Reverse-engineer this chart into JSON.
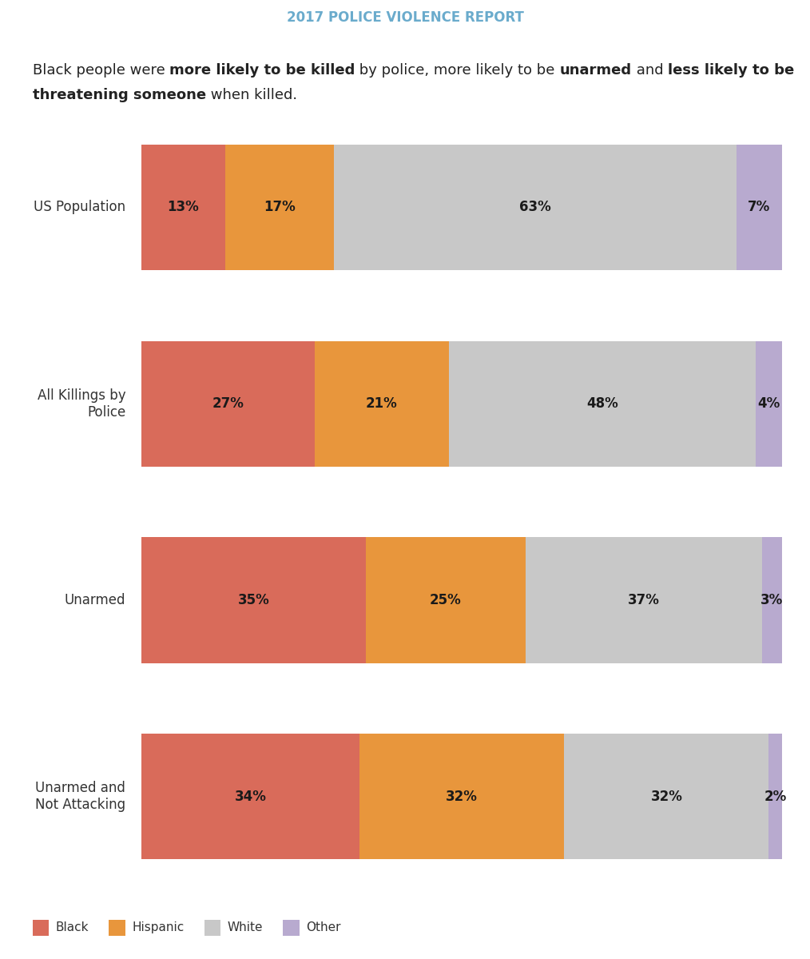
{
  "title": "2017 POLICE VIOLENCE REPORT",
  "subtitle_line1": [
    {
      "text": "Black people were ",
      "bold": false
    },
    {
      "text": "more likely to be killed",
      "bold": true
    },
    {
      "text": " by police, more likely to be ",
      "bold": false
    },
    {
      "text": "unarmed",
      "bold": true
    },
    {
      "text": " and ",
      "bold": false
    },
    {
      "text": "less likely to be",
      "bold": true
    }
  ],
  "subtitle_line2": [
    {
      "text": "threatening someone",
      "bold": true
    },
    {
      "text": " when killed.",
      "bold": false
    }
  ],
  "categories": [
    "US Population",
    "All Killings by\nPolice",
    "Unarmed",
    "Unarmed and\nNot Attacking"
  ],
  "data": [
    [
      13,
      17,
      63,
      7
    ],
    [
      27,
      21,
      48,
      4
    ],
    [
      35,
      25,
      37,
      3
    ],
    [
      34,
      32,
      32,
      2
    ]
  ],
  "colors": [
    "#D96B5A",
    "#E8963C",
    "#C8C8C8",
    "#B8AACF"
  ],
  "legend_labels": [
    "Black",
    "Hispanic",
    "White",
    "Other"
  ],
  "title_bg_color": "#1C2D4F",
  "title_text_color": "#6AABCC",
  "accent_color": "#6AABCC",
  "text_color": "#222222",
  "label_color": "#333333",
  "subtitle_fontsize": 13,
  "bar_label_fontsize": 12,
  "category_fontsize": 12,
  "legend_fontsize": 11,
  "title_fontsize": 12
}
